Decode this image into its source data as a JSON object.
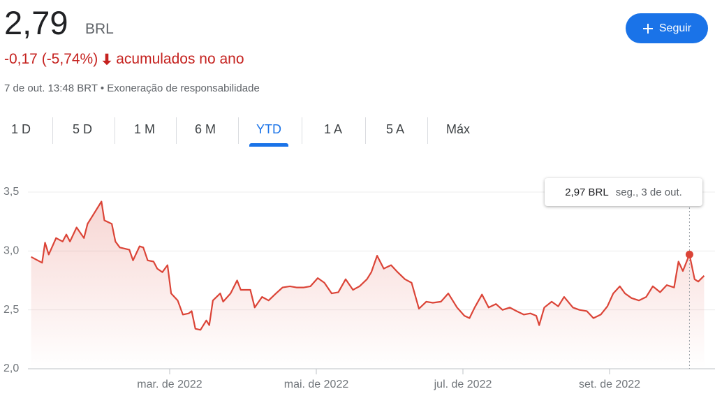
{
  "header": {
    "price": "2,79",
    "currency": "BRL",
    "change": "-0,17 (-5,74%)",
    "change_period": "acumulados no ano",
    "timestamp": "7 de out. 13:48 BRT • Exoneração de responsabilidade"
  },
  "button": {
    "label": "Seguir"
  },
  "tabs": [
    {
      "label": "1 D"
    },
    {
      "label": "5 D"
    },
    {
      "label": "1 M"
    },
    {
      "label": "6 M"
    },
    {
      "label": "YTD",
      "active": true
    },
    {
      "label": "1 A"
    },
    {
      "label": "5 A"
    },
    {
      "label": "Máx"
    }
  ],
  "chart_data": {
    "type": "line",
    "xlim": [
      1,
      10.4
    ],
    "xticks": [
      {
        "value": 3,
        "label": "mar. de 2022"
      },
      {
        "value": 5,
        "label": "mai. de 2022"
      },
      {
        "value": 7,
        "label": "jul. de 2022"
      },
      {
        "value": 9,
        "label": "set. de 2022"
      }
    ],
    "ylim": [
      2,
      3.5
    ],
    "yticks": [
      {
        "value": 2,
        "label": "2,0"
      },
      {
        "value": 2.5,
        "label": "2,5"
      },
      {
        "value": 3,
        "label": "3,0"
      },
      {
        "value": 3.5,
        "label": "3,5"
      }
    ],
    "grid": true,
    "series": [
      {
        "color": "#db4437",
        "x": [
          1.11,
          1.26,
          1.3,
          1.35,
          1.45,
          1.54,
          1.59,
          1.64,
          1.73,
          1.83,
          1.88,
          1.97,
          2.07,
          2.11,
          2.21,
          2.26,
          2.32,
          2.45,
          2.5,
          2.59,
          2.64,
          2.7,
          2.78,
          2.83,
          2.9,
          2.97,
          3.02,
          3.11,
          3.18,
          3.26,
          3.3,
          3.35,
          3.42,
          3.5,
          3.54,
          3.59,
          3.69,
          3.73,
          3.83,
          3.92,
          3.97,
          4.1,
          4.16,
          4.26,
          4.35,
          4.45,
          4.54,
          4.64,
          4.73,
          4.83,
          4.92,
          5.02,
          5.11,
          5.21,
          5.3,
          5.4,
          5.5,
          5.59,
          5.69,
          5.75,
          5.83,
          5.92,
          6.02,
          6.11,
          6.21,
          6.3,
          6.4,
          6.5,
          6.59,
          6.7,
          6.8,
          6.92,
          7.02,
          7.09,
          7.16,
          7.26,
          7.35,
          7.45,
          7.54,
          7.64,
          7.73,
          7.83,
          7.92,
          8.0,
          8.04,
          8.11,
          8.21,
          8.3,
          8.38,
          8.5,
          8.59,
          8.69,
          8.78,
          8.88,
          8.97,
          9.05,
          9.14,
          9.21,
          9.3,
          9.4,
          9.5,
          9.59,
          9.69,
          9.78,
          9.88,
          9.94,
          10.0,
          10.09,
          10.16,
          10.21,
          10.29
        ],
        "values": [
          2.95,
          2.9,
          3.07,
          2.97,
          3.11,
          3.08,
          3.14,
          3.08,
          3.2,
          3.11,
          3.23,
          3.32,
          3.42,
          3.26,
          3.23,
          3.08,
          3.03,
          3.01,
          2.92,
          3.04,
          3.03,
          2.92,
          2.91,
          2.85,
          2.82,
          2.88,
          2.64,
          2.58,
          2.46,
          2.47,
          2.49,
          2.34,
          2.33,
          2.41,
          2.37,
          2.58,
          2.64,
          2.57,
          2.64,
          2.75,
          2.67,
          2.67,
          2.52,
          2.61,
          2.58,
          2.64,
          2.69,
          2.7,
          2.69,
          2.69,
          2.7,
          2.77,
          2.73,
          2.64,
          2.65,
          2.76,
          2.67,
          2.7,
          2.76,
          2.82,
          2.96,
          2.85,
          2.88,
          2.82,
          2.76,
          2.73,
          2.51,
          2.57,
          2.56,
          2.57,
          2.64,
          2.52,
          2.45,
          2.43,
          2.52,
          2.63,
          2.52,
          2.55,
          2.5,
          2.52,
          2.49,
          2.46,
          2.47,
          2.45,
          2.37,
          2.52,
          2.57,
          2.53,
          2.61,
          2.52,
          2.5,
          2.49,
          2.43,
          2.46,
          2.53,
          2.64,
          2.7,
          2.64,
          2.6,
          2.58,
          2.61,
          2.7,
          2.65,
          2.71,
          2.69,
          2.91,
          2.83,
          2.97,
          2.76,
          2.74,
          2.79
        ]
      }
    ],
    "tooltip": {
      "value": 2.97,
      "label": "2,97 BRL",
      "date": "seg., 3 de out."
    }
  }
}
